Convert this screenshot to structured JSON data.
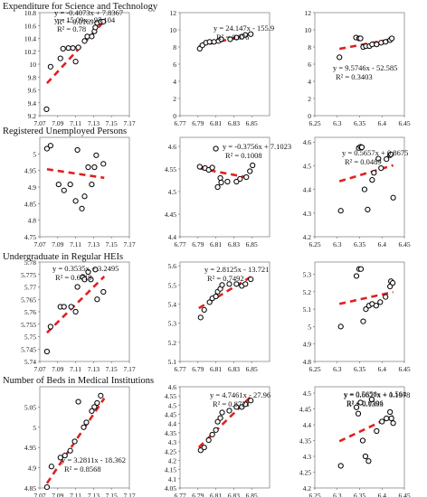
{
  "chart_data": [
    {
      "type": "scatter",
      "section_title": "Expenditure for Science and Technology",
      "x_ticks": [
        7.07,
        7.09,
        7.11,
        7.13,
        7.15,
        7.17
      ],
      "y_ticks": [
        9.2,
        9.4,
        9.6,
        9.8,
        10,
        10.2,
        10.4,
        10.6,
        10.8
      ],
      "xlim": [
        7.07,
        7.17
      ],
      "ylim": [
        9.2,
        10.8
      ],
      "points": [
        [
          7.0775,
          9.3
        ],
        [
          7.082,
          9.96
        ],
        [
          7.093,
          10.09
        ],
        [
          7.096,
          10.24
        ],
        [
          7.102,
          10.25
        ],
        [
          7.107,
          10.25
        ],
        [
          7.11,
          10.04
        ],
        [
          7.113,
          10.26
        ],
        [
          7.12,
          10.36
        ],
        [
          7.123,
          10.43
        ],
        [
          7.128,
          10.43
        ],
        [
          7.131,
          10.51
        ],
        [
          7.132,
          10.57
        ],
        [
          7.134,
          10.64
        ],
        [
          7.138,
          10.66
        ],
        [
          7.141,
          10.66
        ]
      ],
      "trendline": [
        7.078,
        7.142
      ],
      "equation": "y = 15.09x - 97.104",
      "r2": "R² = 0.78"
    },
    {
      "type": "scatter",
      "x_ticks": [
        6.77,
        6.79,
        6.81,
        6.83,
        6.85
      ],
      "y_ticks": [
        0,
        2,
        4,
        6,
        8,
        10,
        12
      ],
      "xlim": [
        6.77,
        6.87
      ],
      "ylim": [
        0,
        12
      ],
      "points": [
        [
          6.792,
          7.8
        ],
        [
          6.795,
          8.2
        ],
        [
          6.799,
          8.5
        ],
        [
          6.803,
          8.6
        ],
        [
          6.808,
          8.6
        ],
        [
          6.813,
          8.7
        ],
        [
          6.816,
          8.9
        ],
        [
          6.826,
          8.9
        ],
        [
          6.833,
          9.1
        ],
        [
          6.839,
          9.2
        ],
        [
          6.843,
          9.4
        ],
        [
          6.849,
          9.5
        ]
      ],
      "trendline": [
        6.791,
        6.849
      ],
      "equation": "y = 24.147x - 155.9",
      "r2": "R² = 0.876"
    },
    {
      "type": "scatter",
      "x_ticks": [
        6.25,
        6.3,
        6.35,
        6.4,
        6.45
      ],
      "y_ticks": [
        0,
        2,
        4,
        6,
        8,
        10,
        12
      ],
      "xlim": [
        6.25,
        6.45
      ],
      "ylim": [
        0,
        12
      ],
      "points": [
        [
          6.305,
          6.8
        ],
        [
          6.342,
          9.1
        ],
        [
          6.349,
          9.0
        ],
        [
          6.352,
          9.0
        ],
        [
          6.358,
          8.0
        ],
        [
          6.364,
          8.1
        ],
        [
          6.372,
          8.1
        ],
        [
          6.378,
          8.3
        ],
        [
          6.388,
          8.3
        ],
        [
          6.398,
          8.5
        ],
        [
          6.408,
          8.6
        ],
        [
          6.418,
          8.8
        ],
        [
          6.422,
          9.0
        ]
      ],
      "trendline": [
        6.305,
        6.425
      ],
      "equation": "y = 9.5746x - 52.585",
      "r2": "R² = 0.3403"
    },
    {
      "type": "scatter",
      "section_title": "Registered Unemployed Persons",
      "x_ticks": [
        7.07,
        7.09,
        7.11,
        7.13,
        7.15,
        7.17
      ],
      "y_ticks": [
        4.75,
        4.8,
        4.85,
        4.9,
        4.95,
        5
      ],
      "xlim": [
        7.07,
        7.17
      ],
      "ylim": [
        4.75,
        5.05
      ],
      "points": [
        [
          7.078,
          5.016
        ],
        [
          7.082,
          5.025
        ],
        [
          7.091,
          4.908
        ],
        [
          7.097,
          4.89
        ],
        [
          7.104,
          4.908
        ],
        [
          7.11,
          4.858
        ],
        [
          7.112,
          5.012
        ],
        [
          7.117,
          4.835
        ],
        [
          7.12,
          4.872
        ],
        [
          7.124,
          4.96
        ],
        [
          7.128,
          4.908
        ],
        [
          7.131,
          4.96
        ],
        [
          7.133,
          4.996
        ],
        [
          7.141,
          4.97
        ]
      ],
      "trendline": [
        7.078,
        7.142
      ],
      "equation": "y = -0.4073x + 7.8367",
      "r2": "R² = 0.0169"
    },
    {
      "type": "scatter",
      "x_ticks": [
        6.77,
        6.79,
        6.81,
        6.83,
        6.85
      ],
      "y_ticks": [
        4.4,
        4.45,
        4.5,
        4.55,
        4.6
      ],
      "xlim": [
        6.77,
        6.87
      ],
      "ylim": [
        4.4,
        4.62
      ],
      "points": [
        [
          6.792,
          4.555
        ],
        [
          6.798,
          4.552
        ],
        [
          6.802,
          4.548
        ],
        [
          6.806,
          4.553
        ],
        [
          6.81,
          4.595
        ],
        [
          6.812,
          4.51
        ],
        [
          6.815,
          4.53
        ],
        [
          6.816,
          4.52
        ],
        [
          6.823,
          4.522
        ],
        [
          6.833,
          4.522
        ],
        [
          6.837,
          4.528
        ],
        [
          6.844,
          4.532
        ],
        [
          6.848,
          4.545
        ],
        [
          6.851,
          4.558
        ]
      ],
      "trendline": [
        6.791,
        6.85
      ],
      "equation": "y = -0.3756x + 7.1023",
      "r2": "R² = 0.1008"
    },
    {
      "type": "scatter",
      "x_ticks": [
        6.25,
        6.3,
        6.35,
        6.4,
        6.45
      ],
      "y_ticks": [
        4.2,
        4.3,
        4.4,
        4.5,
        4.6
      ],
      "xlim": [
        6.25,
        6.45
      ],
      "ylim": [
        4.2,
        4.62
      ],
      "points": [
        [
          6.308,
          4.31
        ],
        [
          6.348,
          4.575
        ],
        [
          6.352,
          4.58
        ],
        [
          6.355,
          4.578
        ],
        [
          6.361,
          4.4
        ],
        [
          6.368,
          4.315
        ],
        [
          6.378,
          4.44
        ],
        [
          6.382,
          4.47
        ],
        [
          6.392,
          4.53
        ],
        [
          6.398,
          4.49
        ],
        [
          6.41,
          4.528
        ],
        [
          6.418,
          4.545
        ],
        [
          6.42,
          4.548
        ],
        [
          6.425,
          4.365
        ]
      ],
      "trendline": [
        6.305,
        6.425
      ],
      "equation": "y = 0.5657x + 0.8675",
      "r2": "R² = 0.0489"
    },
    {
      "type": "scatter",
      "section_title": "Undergraduate in Regular HEIs",
      "x_ticks": [
        7.07,
        7.09,
        7.11,
        7.13,
        7.15,
        7.17
      ],
      "y_ticks": [
        5.74,
        5.745,
        5.75,
        5.755,
        5.76,
        5.765,
        5.77,
        5.775,
        5.78
      ],
      "xlim": [
        7.07,
        7.17
      ],
      "ylim": [
        5.74,
        5.78
      ],
      "points": [
        [
          7.078,
          5.744
        ],
        [
          7.082,
          5.754
        ],
        [
          7.093,
          5.762
        ],
        [
          7.097,
          5.762
        ],
        [
          7.105,
          5.762
        ],
        [
          7.11,
          5.76
        ],
        [
          7.112,
          5.77
        ],
        [
          7.118,
          5.774
        ],
        [
          7.12,
          5.773
        ],
        [
          7.124,
          5.776
        ],
        [
          7.127,
          5.773
        ],
        [
          7.132,
          5.777
        ],
        [
          7.134,
          5.765
        ],
        [
          7.141,
          5.768
        ]
      ],
      "trendline": [
        7.078,
        7.142
      ],
      "equation": "y = 0.3535x + 3.2495",
      "r2": "R² = 0.6719"
    },
    {
      "type": "scatter",
      "x_ticks": [
        6.77,
        6.79,
        6.81,
        6.83,
        6.85
      ],
      "y_ticks": [
        5.1,
        5.2,
        5.3,
        5.4,
        5.5,
        5.6
      ],
      "xlim": [
        6.77,
        6.87
      ],
      "ylim": [
        5.1,
        5.62
      ],
      "points": [
        [
          6.793,
          5.33
        ],
        [
          6.797,
          5.37
        ],
        [
          6.803,
          5.41
        ],
        [
          6.806,
          5.43
        ],
        [
          6.81,
          5.44
        ],
        [
          6.812,
          5.465
        ],
        [
          6.815,
          5.48
        ],
        [
          6.817,
          5.5
        ],
        [
          6.825,
          5.505
        ],
        [
          6.833,
          5.505
        ],
        [
          6.839,
          5.495
        ],
        [
          6.843,
          5.505
        ],
        [
          6.849,
          5.53
        ]
      ],
      "trendline": [
        6.791,
        6.85
      ],
      "equation": "y = 2.8125x - 13.721",
      "r2": "R² = 0.7492"
    },
    {
      "type": "scatter",
      "x_ticks": [
        6.25,
        6.3,
        6.35,
        6.4,
        6.45
      ],
      "y_ticks": [
        4.8,
        4.9,
        5,
        5.1,
        5.2,
        5.3
      ],
      "xlim": [
        6.25,
        6.45
      ],
      "ylim": [
        4.8,
        5.37
      ],
      "points": [
        [
          6.308,
          5.0
        ],
        [
          6.343,
          5.29
        ],
        [
          6.349,
          5.33
        ],
        [
          6.353,
          5.33
        ],
        [
          6.358,
          5.03
        ],
        [
          6.364,
          5.1
        ],
        [
          6.371,
          5.12
        ],
        [
          6.378,
          5.13
        ],
        [
          6.387,
          5.12
        ],
        [
          6.396,
          5.14
        ],
        [
          6.408,
          5.17
        ],
        [
          6.418,
          5.23
        ],
        [
          6.42,
          5.26
        ],
        [
          6.424,
          5.25
        ]
      ],
      "trendline": [
        6.305,
        6.425
      ],
      "equation": "y = 0.5656x + 1.564",
      "r2": "R² = 0.0396"
    },
    {
      "type": "scatter",
      "section_title": "Number of Beds in Medical Institutions",
      "x_ticks": [
        7.07,
        7.09,
        7.11,
        7.13,
        7.15,
        7.17
      ],
      "y_ticks": [
        4.85,
        4.9,
        4.95,
        5,
        5.05
      ],
      "xlim": [
        7.07,
        7.17
      ],
      "ylim": [
        4.85,
        5.1
      ],
      "points": [
        [
          7.078,
          4.852
        ],
        [
          7.083,
          4.903
        ],
        [
          7.093,
          4.925
        ],
        [
          7.098,
          4.93
        ],
        [
          7.104,
          4.942
        ],
        [
          7.109,
          4.965
        ],
        [
          7.113,
          5.063
        ],
        [
          7.119,
          5.0
        ],
        [
          7.122,
          5.012
        ],
        [
          7.128,
          5.04
        ],
        [
          7.131,
          5.05
        ],
        [
          7.134,
          5.06
        ],
        [
          7.138,
          5.078
        ]
      ],
      "trendline": [
        7.078,
        7.142
      ],
      "equation": "y = 3.2811x - 18.362",
      "r2": "R² = 0.8568"
    },
    {
      "type": "scatter",
      "x_ticks": [
        6.77,
        6.79,
        6.81,
        6.83,
        6.85
      ],
      "y_ticks": [
        4.05,
        4.1,
        4.15,
        4.2,
        4.25,
        4.3,
        4.35,
        4.4,
        4.45,
        4.5,
        4.55,
        4.6
      ],
      "xlim": [
        6.77,
        6.87
      ],
      "ylim": [
        4.05,
        4.6
      ],
      "points": [
        [
          6.793,
          4.255
        ],
        [
          6.797,
          4.27
        ],
        [
          6.802,
          4.31
        ],
        [
          6.806,
          4.34
        ],
        [
          6.81,
          4.365
        ],
        [
          6.812,
          4.41
        ],
        [
          6.815,
          4.43
        ],
        [
          6.817,
          4.46
        ],
        [
          6.825,
          4.47
        ],
        [
          6.833,
          4.49
        ],
        [
          6.839,
          4.49
        ],
        [
          6.843,
          4.505
        ],
        [
          6.849,
          4.525
        ]
      ],
      "trendline": [
        6.791,
        6.85
      ],
      "equation": "y = 4.7461x - 27.96",
      "r2": "R² = 0.8723"
    },
    {
      "type": "scatter",
      "x_ticks": [
        6.25,
        6.3,
        6.35,
        6.4,
        6.45
      ],
      "y_ticks": [
        4.2,
        4.25,
        4.3,
        4.35,
        4.4,
        4.45,
        4.5
      ],
      "xlim": [
        6.25,
        6.45
      ],
      "ylim": [
        4.2,
        4.52
      ],
      "points": [
        [
          6.308,
          4.27
        ],
        [
          6.343,
          4.455
        ],
        [
          6.347,
          4.435
        ],
        [
          6.352,
          4.47
        ],
        [
          6.357,
          4.35
        ],
        [
          6.363,
          4.3
        ],
        [
          6.37,
          4.285
        ],
        [
          6.377,
          4.48
        ],
        [
          6.388,
          4.38
        ],
        [
          6.4,
          4.41
        ],
        [
          6.41,
          4.42
        ],
        [
          6.418,
          4.44
        ],
        [
          6.421,
          4.42
        ],
        [
          6.425,
          4.405
        ]
      ],
      "trendline": [
        6.305,
        6.425
      ],
      "equation": "y = 0.6677x + 0.1378",
      "r2": "R² = 0.1393"
    }
  ]
}
